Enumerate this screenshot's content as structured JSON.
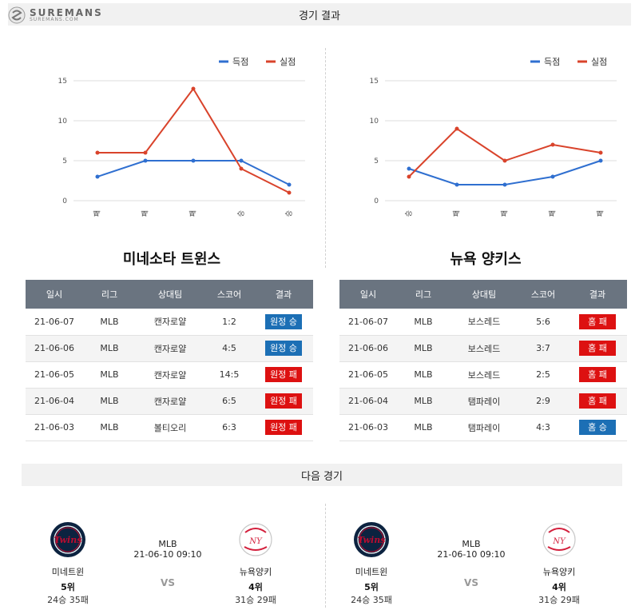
{
  "header": {
    "logo_big": "SUREMANS",
    "logo_small": "SUREMANS.COM",
    "title": "경기 결과"
  },
  "colors": {
    "scored": "#2f6fd0",
    "allowed": "#d9432b",
    "win_badge": "#1c6fb5",
    "loss_badge": "#dd1111",
    "header_bg": "#6a7480"
  },
  "chart_data": [
    {
      "type": "line",
      "categories": [
        "패",
        "패",
        "패",
        "승",
        "승"
      ],
      "series": [
        {
          "name": "득점",
          "values": [
            3,
            5,
            5,
            5,
            2
          ]
        },
        {
          "name": "실점",
          "values": [
            6,
            6,
            14,
            4,
            1
          ]
        }
      ],
      "ylim": [
        0,
        15
      ],
      "yticks": [
        0,
        5,
        10,
        15
      ],
      "legend": "top-right",
      "grid": true
    },
    {
      "type": "line",
      "categories": [
        "승",
        "패",
        "패",
        "패",
        "패"
      ],
      "series": [
        {
          "name": "득점",
          "values": [
            4,
            2,
            2,
            3,
            5
          ]
        },
        {
          "name": "실점",
          "values": [
            3,
            9,
            5,
            7,
            6
          ]
        }
      ],
      "ylim": [
        0,
        15
      ],
      "yticks": [
        0,
        5,
        10,
        15
      ],
      "legend": "top-right",
      "grid": true
    }
  ],
  "left": {
    "team": "미네소타 트윈스",
    "columns": [
      "일시",
      "리그",
      "상대팀",
      "스코어",
      "결과"
    ],
    "rows": [
      {
        "date": "21-06-07",
        "league": "MLB",
        "opp": "캔자로얄",
        "score": "1:2",
        "result": "원정 승",
        "win": true
      },
      {
        "date": "21-06-06",
        "league": "MLB",
        "opp": "캔자로얄",
        "score": "4:5",
        "result": "원정 승",
        "win": true
      },
      {
        "date": "21-06-05",
        "league": "MLB",
        "opp": "캔자로얄",
        "score": "14:5",
        "result": "원정 패",
        "win": false
      },
      {
        "date": "21-06-04",
        "league": "MLB",
        "opp": "캔자로얄",
        "score": "6:5",
        "result": "원정 패",
        "win": false
      },
      {
        "date": "21-06-03",
        "league": "MLB",
        "opp": "볼티오리",
        "score": "6:3",
        "result": "원정 패",
        "win": false
      }
    ]
  },
  "right": {
    "team": "뉴욕 양키스",
    "columns": [
      "일시",
      "리그",
      "상대팀",
      "스코어",
      "결과"
    ],
    "rows": [
      {
        "date": "21-06-07",
        "league": "MLB",
        "opp": "보스레드",
        "score": "5:6",
        "result": "홈 패",
        "win": false
      },
      {
        "date": "21-06-06",
        "league": "MLB",
        "opp": "보스레드",
        "score": "3:7",
        "result": "홈 패",
        "win": false
      },
      {
        "date": "21-06-05",
        "league": "MLB",
        "opp": "보스레드",
        "score": "2:5",
        "result": "홈 패",
        "win": false
      },
      {
        "date": "21-06-04",
        "league": "MLB",
        "opp": "탬파레이",
        "score": "2:9",
        "result": "홈 패",
        "win": false
      },
      {
        "date": "21-06-03",
        "league": "MLB",
        "opp": "탬파레이",
        "score": "4:3",
        "result": "홈 승",
        "win": true
      }
    ]
  },
  "next": {
    "title": "다음 경기",
    "matches": [
      {
        "league": "MLB",
        "datetime": "21-06-10 09:10",
        "vs": "VS",
        "home": {
          "name": "미네트윈",
          "rank": "5위",
          "record": "24승 35패"
        },
        "away": {
          "name": "뉴욕양키",
          "rank": "4위",
          "record": "31승 29패"
        }
      },
      {
        "league": "MLB",
        "datetime": "21-06-10 09:10",
        "vs": "VS",
        "home": {
          "name": "미네트윈",
          "rank": "5위",
          "record": "24승 35패"
        },
        "away": {
          "name": "뉴욕양키",
          "rank": "4위",
          "record": "31승 29패"
        }
      }
    ]
  }
}
